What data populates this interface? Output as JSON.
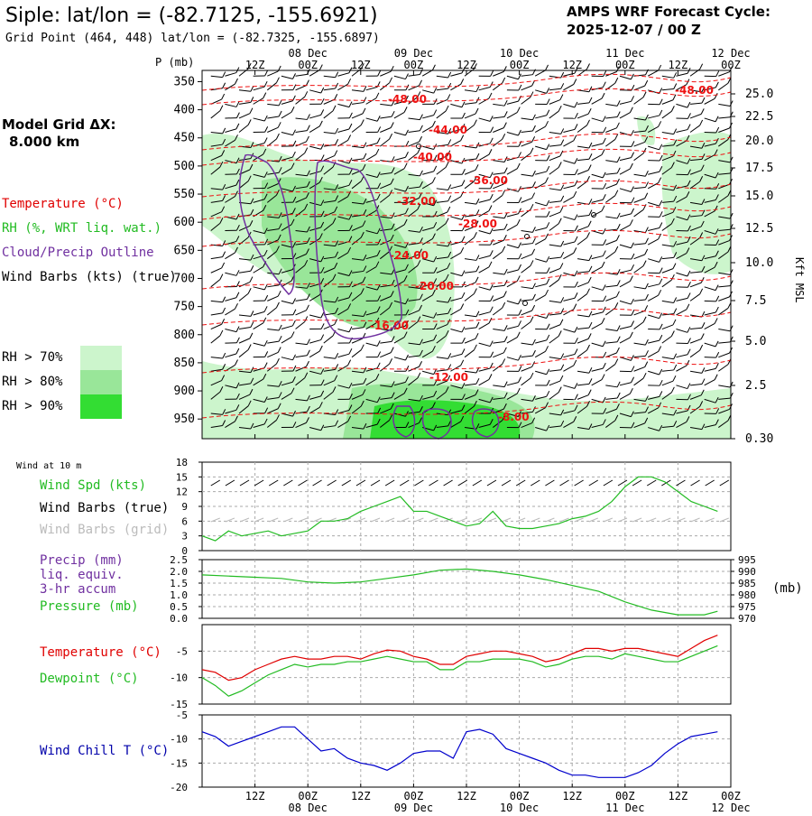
{
  "header": {
    "title": "Siple:  lat/lon = (-82.7125, -155.6921)",
    "subtitle": "Grid Point (464, 448) lat/lon = (-82.7325, -155.6897)",
    "cycle_line1": "AMPS WRF Forecast Cycle:",
    "cycle_line2": "2025-12-07 / 00  Z"
  },
  "legend": {
    "model_grid_1": "Model Grid ΔX:",
    "model_grid_2": "8.000 km",
    "temperature": "Temperature (°C)",
    "rh": "RH (%, WRT liq. wat.)",
    "cloud": "Cloud/Precip Outline",
    "wind": "Wind Barbs (kts) (true)",
    "rh_levels": [
      {
        "label": "RH > 70%",
        "color": "#ccf5cc"
      },
      {
        "label": "RH > 80%",
        "color": "#99e699"
      },
      {
        "label": "RH > 90%",
        "color": "#33dd33"
      }
    ]
  },
  "time_axis": {
    "hour_labels": [
      "12Z",
      "00Z",
      "12Z",
      "00Z",
      "12Z",
      "00Z",
      "12Z",
      "00Z",
      "12Z",
      "00Z"
    ],
    "date_labels": [
      "08 Dec",
      "09 Dec",
      "10 Dec",
      "11 Dec",
      "12 Dec"
    ]
  },
  "chart_data": [
    {
      "id": "cross_section",
      "type": "contour",
      "ylabel_left": "P (mb)",
      "ylabel_right": "Kft MSL",
      "pressure_ticks": [
        "350",
        "400",
        "450",
        "500",
        "550",
        "600",
        "650",
        "700",
        "750",
        "800",
        "850",
        "900",
        "950"
      ],
      "height_ticks": [
        "25.0",
        "22.5",
        "20.0",
        "17.5",
        "15.0",
        "12.5",
        "10.0",
        "7.5",
        "5.0",
        "2.5",
        "0.30"
      ],
      "temperature_contours": [
        {
          "value": -48,
          "label": "-48.00"
        },
        {
          "value": -44,
          "label": "-44.00"
        },
        {
          "value": -40,
          "label": "-40.00"
        },
        {
          "value": -36,
          "label": "-36.00"
        },
        {
          "value": -32,
          "label": "-32.00"
        },
        {
          "value": -28,
          "label": "-28.00"
        },
        {
          "value": -24,
          "label": "-24.00"
        },
        {
          "value": -20,
          "label": "-20.00"
        },
        {
          "value": -16,
          "label": "-16.00"
        },
        {
          "value": -12,
          "label": "-12.00"
        },
        {
          "value": -8,
          "label": "-8.00"
        }
      ],
      "second_label_48": "-48.00"
    },
    {
      "id": "wind_panel",
      "type": "line",
      "title": "Wind at 10 m",
      "labels": [
        "Wind Spd (kts)",
        "Wind Barbs (true)",
        "Wind Barbs (grid)"
      ],
      "y_ticks": [
        "18",
        "15",
        "12",
        "9",
        "6",
        "3",
        "0"
      ],
      "ylim": [
        0,
        18
      ],
      "x_hours": [
        0,
        3,
        6,
        9,
        12,
        15,
        18,
        21,
        24,
        27,
        30,
        33,
        36,
        39,
        42,
        45,
        48,
        51,
        54,
        57,
        60,
        63,
        66,
        69,
        72,
        75,
        78,
        81,
        84,
        87,
        90,
        93,
        96,
        99,
        102,
        105,
        108,
        111,
        114,
        117
      ],
      "wind_speed": [
        3,
        2,
        4,
        3,
        3.5,
        4,
        3,
        3.5,
        4,
        6,
        6,
        6.5,
        8,
        9,
        10,
        11,
        8,
        8,
        7,
        6,
        5,
        5.5,
        8,
        5,
        4.5,
        4.5,
        5,
        5.5,
        6.5,
        7,
        8,
        10,
        13,
        15,
        15,
        14,
        12,
        10,
        9,
        8
      ]
    },
    {
      "id": "pressure_panel",
      "type": "line",
      "labels": [
        "Precip (mm)",
        "liq. equiv.",
        "3-hr accum",
        "Pressure (mb)"
      ],
      "unit_label": "(mb)",
      "left_ticks": [
        "2.5",
        "2.0",
        "1.5",
        "1.0",
        "0.5",
        "0.0"
      ],
      "right_ticks": [
        "995",
        "990",
        "985",
        "980",
        "975",
        "970"
      ],
      "ylim_precip": [
        0,
        2.5
      ],
      "ylim_pressure": [
        970,
        995
      ],
      "x_hours": [
        0,
        6,
        12,
        18,
        24,
        30,
        36,
        42,
        48,
        54,
        60,
        66,
        72,
        78,
        84,
        90,
        96,
        102,
        108,
        114,
        117
      ],
      "pressure": [
        988.5,
        988,
        987.5,
        987,
        985.5,
        985,
        985.5,
        987,
        988.5,
        990.5,
        991,
        990,
        988.5,
        986.5,
        984,
        981.5,
        977,
        973.5,
        971.5,
        971.5,
        973
      ]
    },
    {
      "id": "temp_panel",
      "type": "line",
      "labels": [
        "Temperature (°C)",
        "Dewpoint (°C)"
      ],
      "y_ticks": [
        "-5",
        "-10",
        "-15"
      ],
      "ylim": [
        -15,
        0
      ],
      "x_hours": [
        0,
        3,
        6,
        9,
        12,
        15,
        18,
        21,
        24,
        27,
        30,
        33,
        36,
        39,
        42,
        45,
        48,
        51,
        54,
        57,
        60,
        63,
        66,
        69,
        72,
        75,
        78,
        81,
        84,
        87,
        90,
        93,
        96,
        99,
        102,
        105,
        108,
        111,
        114,
        117
      ],
      "temperature": [
        -8.5,
        -9,
        -10.5,
        -10,
        -8.5,
        -7.5,
        -6.5,
        -6,
        -6.5,
        -6.5,
        -6,
        -6,
        -6.5,
        -5.5,
        -4.8,
        -5,
        -6,
        -6.5,
        -7.5,
        -7.5,
        -6,
        -5.5,
        -5,
        -5,
        -5.5,
        -6,
        -7,
        -6.5,
        -5.5,
        -4.5,
        -4.5,
        -5,
        -4.5,
        -4.5,
        -5,
        -5.5,
        -6,
        -4.5,
        -3,
        -2
      ],
      "dewpoint": [
        -10,
        -11.5,
        -13.5,
        -12.5,
        -11,
        -9.5,
        -8.5,
        -7.5,
        -8,
        -7.5,
        -7.5,
        -7,
        -7,
        -6.5,
        -6,
        -6.5,
        -7,
        -7,
        -8.5,
        -8.5,
        -7,
        -7,
        -6.5,
        -6.5,
        -6.5,
        -7,
        -8,
        -7.5,
        -6.5,
        -6,
        -6,
        -6.5,
        -5.5,
        -6,
        -6.5,
        -7,
        -7,
        -6,
        -5,
        -4
      ]
    },
    {
      "id": "windchill_panel",
      "type": "line",
      "labels": [
        "Wind Chill T (°C)"
      ],
      "y_ticks": [
        "-5",
        "-10",
        "-15",
        "-20"
      ],
      "ylim": [
        -20,
        -5
      ],
      "x_hours": [
        0,
        3,
        6,
        9,
        12,
        15,
        18,
        21,
        24,
        27,
        30,
        33,
        36,
        39,
        42,
        45,
        48,
        51,
        54,
        57,
        60,
        63,
        66,
        69,
        72,
        75,
        78,
        81,
        84,
        87,
        90,
        93,
        96,
        99,
        102,
        105,
        108,
        111,
        114,
        117
      ],
      "wind_chill": [
        -8.5,
        -9.5,
        -11.5,
        -10.5,
        -9.5,
        -8.5,
        -7.5,
        -7.5,
        -10,
        -12.5,
        -12,
        -14,
        -15,
        -15.5,
        -16.5,
        -15,
        -13,
        -12.5,
        -12.5,
        -14,
        -8.5,
        -8,
        -9,
        -12,
        -13,
        -14,
        -15,
        -16.5,
        -17.5,
        -17.5,
        -18,
        -18,
        -18,
        -17,
        -15.5,
        -13,
        -11,
        -9.5,
        -9,
        -8.5
      ]
    }
  ]
}
